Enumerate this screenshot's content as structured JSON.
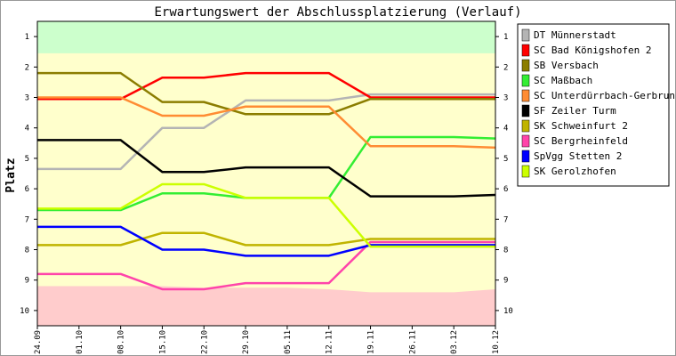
{
  "chart_data": {
    "type": "line",
    "title": "Erwartungswert der Abschlussplatzierung (Verlauf)",
    "xlabel": "",
    "ylabel": "Platz",
    "ylim": [
      0.5,
      10.5
    ],
    "y_inverted": true,
    "yticks": [
      1,
      2,
      3,
      4,
      5,
      6,
      7,
      8,
      9,
      10
    ],
    "grid": false,
    "legend_position": "right",
    "categories": [
      "24.09",
      "01.10",
      "08.10",
      "15.10",
      "22.10",
      "29.10",
      "05.11",
      "12.11",
      "19.11",
      "26.11",
      "03.12",
      "10.12"
    ],
    "background_bands": {
      "green_until": [
        1.55,
        1.55,
        1.55,
        1.55,
        1.55,
        1.55,
        1.55,
        1.55,
        1.55,
        1.55,
        1.55,
        1.55
      ],
      "red_from": [
        9.2,
        9.2,
        9.2,
        9.2,
        9.25,
        9.25,
        9.25,
        9.3,
        9.4,
        9.4,
        9.4,
        9.3
      ],
      "colors": {
        "green": "#ccffcc",
        "yellow": "#ffffcc",
        "red": "#ffcccc"
      }
    },
    "series": [
      {
        "name": "DT Münnerstadt",
        "color": "#b4b4b4",
        "values": [
          5.35,
          5.35,
          5.35,
          4.0,
          4.0,
          3.1,
          3.1,
          3.1,
          2.9,
          2.9,
          2.9,
          2.9
        ]
      },
      {
        "name": "SC Bad Königshofen 2",
        "color": "#ff0000",
        "values": [
          3.05,
          3.05,
          3.05,
          2.35,
          2.35,
          2.2,
          2.2,
          2.2,
          3.0,
          3.0,
          3.0,
          3.0
        ]
      },
      {
        "name": "SB Versbach",
        "color": "#8b7d00",
        "values": [
          2.2,
          2.2,
          2.2,
          3.15,
          3.15,
          3.55,
          3.55,
          3.55,
          3.05,
          3.05,
          3.05,
          3.05
        ]
      },
      {
        "name": "SC Maßbach",
        "color": "#33ee33",
        "values": [
          6.7,
          6.7,
          6.7,
          6.15,
          6.15,
          6.3,
          6.3,
          6.3,
          4.3,
          4.3,
          4.3,
          4.35
        ]
      },
      {
        "name": "SC Unterdürrbach-Gerbrunn",
        "color": "#ff8c33",
        "values": [
          3.0,
          3.0,
          3.0,
          3.6,
          3.6,
          3.3,
          3.3,
          3.3,
          4.6,
          4.6,
          4.6,
          4.65
        ]
      },
      {
        "name": "SF Zeiler Turm",
        "color": "#000000",
        "values": [
          4.4,
          4.4,
          4.4,
          5.45,
          5.45,
          5.3,
          5.3,
          5.3,
          6.25,
          6.25,
          6.25,
          6.2
        ]
      },
      {
        "name": "SK Schweinfurt 2",
        "color": "#c0b400",
        "values": [
          7.85,
          7.85,
          7.85,
          7.45,
          7.45,
          7.85,
          7.85,
          7.85,
          7.65,
          7.65,
          7.65,
          7.65
        ]
      },
      {
        "name": "SC Bergrheinfeld",
        "color": "#ff44aa",
        "values": [
          8.8,
          8.8,
          8.8,
          9.3,
          9.3,
          9.1,
          9.1,
          9.1,
          7.75,
          7.75,
          7.75,
          7.75
        ]
      },
      {
        "name": "SpVgg Stetten 2",
        "color": "#0000ff",
        "values": [
          7.25,
          7.25,
          7.25,
          8.0,
          8.0,
          8.2,
          8.2,
          8.2,
          7.85,
          7.85,
          7.85,
          7.85
        ]
      },
      {
        "name": "SK Gerolzhofen",
        "color": "#ccff00",
        "values": [
          6.65,
          6.65,
          6.65,
          5.85,
          5.85,
          6.3,
          6.3,
          6.3,
          7.9,
          7.9,
          7.9,
          7.9
        ]
      }
    ]
  }
}
